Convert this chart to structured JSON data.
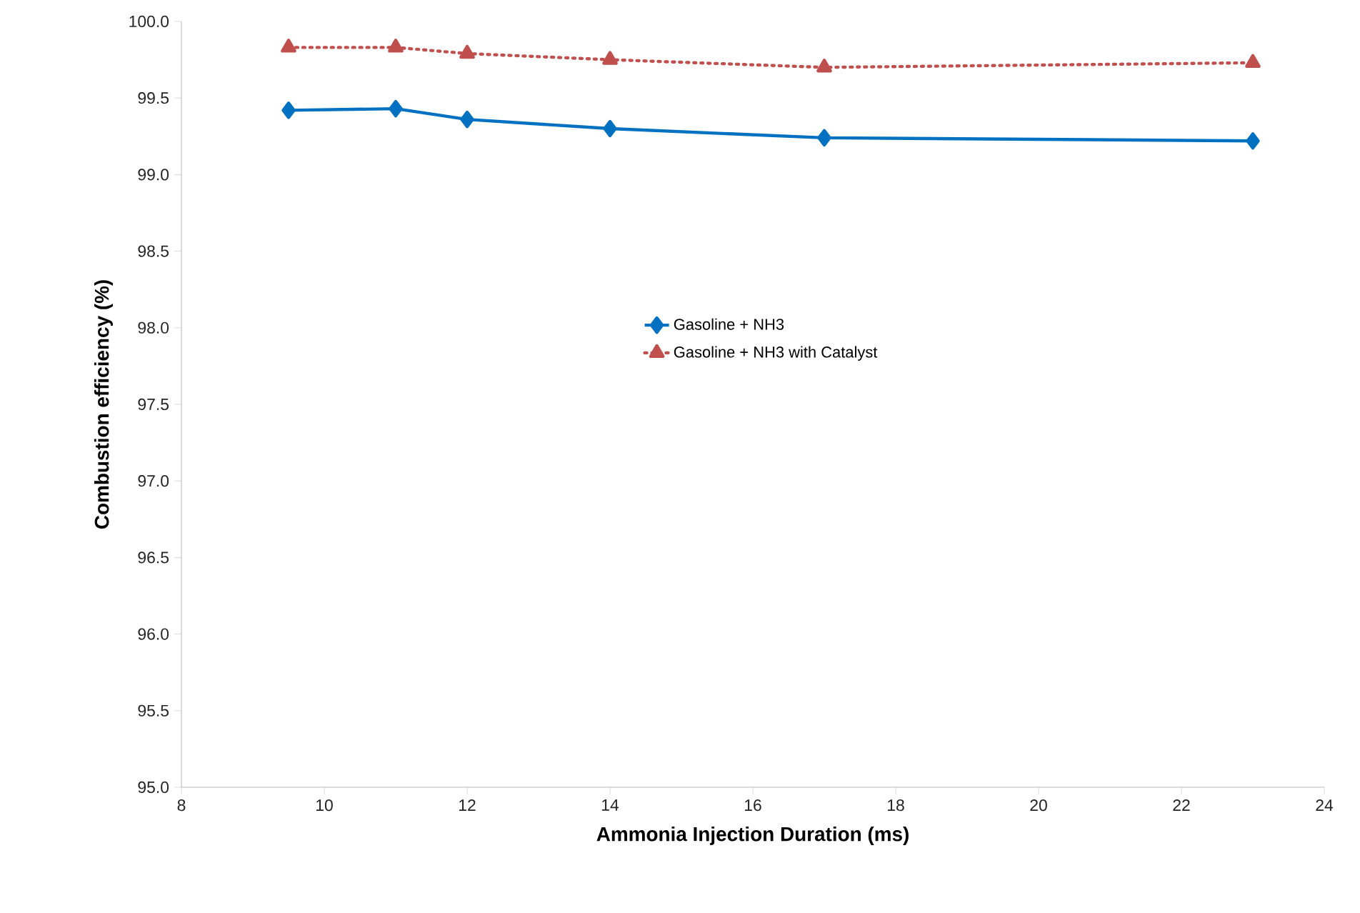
{
  "chart_data": {
    "type": "line",
    "xlabel": "Ammonia Injection Duration (ms)",
    "ylabel": "Combustion efficiency (%)",
    "x": [
      9.5,
      11,
      12,
      14,
      17,
      23
    ],
    "series": [
      {
        "name": "Gasoline + NH3",
        "color": "#0070c0",
        "marker": "diamond",
        "line_style": "solid",
        "values": [
          99.42,
          99.43,
          99.36,
          99.3,
          99.24,
          99.22
        ]
      },
      {
        "name": "Gasoline + NH3 with Catalyst",
        "color": "#c0504d",
        "marker": "triangle",
        "line_style": "dotted",
        "values": [
          99.83,
          99.83,
          99.79,
          99.75,
          99.7,
          99.73
        ]
      }
    ],
    "xlim": [
      8,
      24
    ],
    "xticks": [
      8,
      10,
      12,
      14,
      16,
      18,
      20,
      22,
      24
    ],
    "ylim": [
      95,
      100
    ],
    "yticks": [
      {
        "value": 95,
        "label": "95.0"
      },
      {
        "value": 95.5,
        "label": "95.5"
      },
      {
        "value": 96,
        "label": "96.0"
      },
      {
        "value": 96.5,
        "label": "96.5"
      },
      {
        "value": 97,
        "label": "97.0"
      },
      {
        "value": 97.5,
        "label": "97.5"
      },
      {
        "value": 98,
        "label": "98.0"
      },
      {
        "value": 98.5,
        "label": "98.5"
      },
      {
        "value": 99,
        "label": "99.0"
      },
      {
        "value": 99.5,
        "label": "99.5"
      },
      {
        "value": 100,
        "label": "100.0"
      }
    ],
    "grid": false,
    "legend": "right"
  }
}
